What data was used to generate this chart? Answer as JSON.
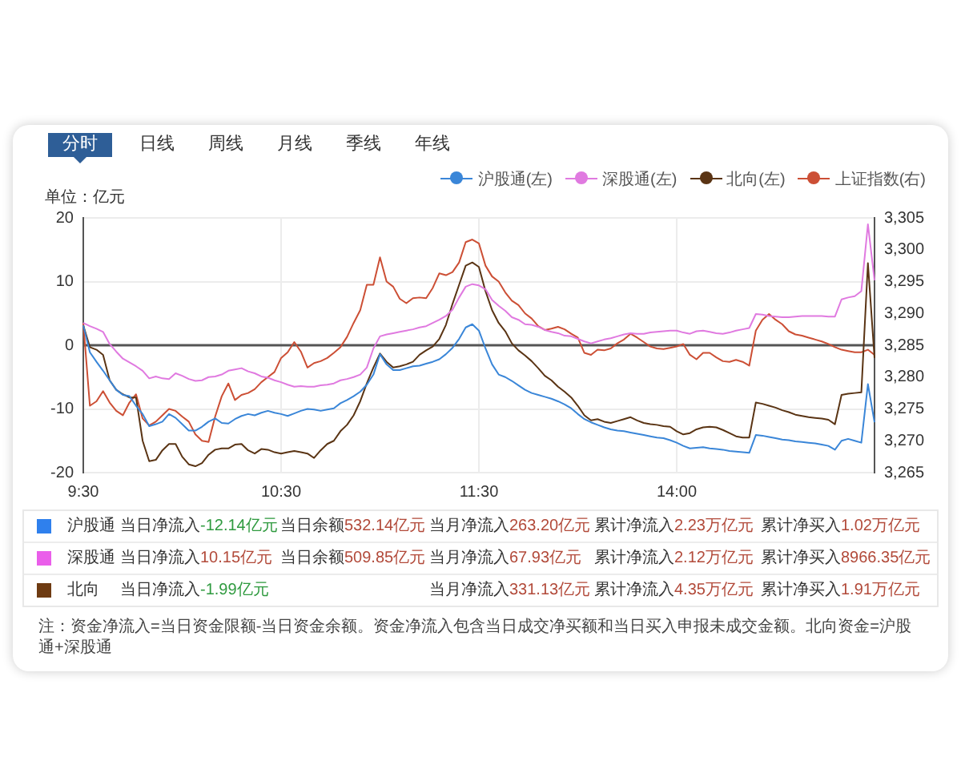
{
  "chart_data": [
    {
      "type": "line",
      "annotations": [
        "分时",
        "日线",
        "周线",
        "月线",
        "季线",
        "年线"
      ],
      "ylabel": "单位：亿元",
      "categories": [
        "9:30",
        null,
        null,
        null,
        null,
        null,
        null,
        null,
        null,
        null,
        null,
        null,
        null,
        null,
        null,
        null,
        null,
        null,
        null,
        null,
        null,
        null,
        null,
        null,
        null,
        null,
        null,
        null,
        null,
        null,
        "10:30",
        null,
        null,
        null,
        null,
        null,
        null,
        null,
        null,
        null,
        null,
        null,
        null,
        null,
        null,
        null,
        null,
        null,
        null,
        null,
        null,
        null,
        null,
        null,
        null,
        null,
        null,
        null,
        null,
        null,
        "11:30",
        null,
        null,
        null,
        null,
        null,
        null,
        null,
        null,
        null,
        null,
        null,
        null,
        null,
        null,
        null,
        null,
        null,
        null,
        null,
        null,
        null,
        null,
        null,
        null,
        null,
        null,
        null,
        null,
        null,
        "14:00",
        null,
        null,
        null,
        null,
        null,
        null,
        null,
        null,
        null,
        null,
        null,
        null,
        null,
        null,
        null,
        null,
        null,
        null,
        null,
        null,
        null,
        null,
        null,
        null,
        null,
        null,
        null,
        null,
        null,
        null
      ],
      "series": [
        {
          "name": "沪股通(左)",
          "color": "#3a86d8",
          "values": [
            3.1,
            -1.1,
            -2.6,
            -4.0,
            -5.5,
            -7.0,
            -7.8,
            -8.0,
            -9.5,
            -10.8,
            -12.7,
            -12.4,
            -12.0,
            -10.8,
            -11.4,
            -12.4,
            -13.4,
            -13.4,
            -12.8,
            -12.0,
            -11.5,
            -12.2,
            -12.3,
            -11.6,
            -11.1,
            -10.8,
            -11.0,
            -10.6,
            -10.3,
            -10.6,
            -10.8,
            -11.1,
            -10.7,
            -10.3,
            -10.0,
            -10.1,
            -10.3,
            -10.1,
            -9.9,
            -9.1,
            -8.6,
            -8.0,
            -7.3,
            -6.2,
            -4.6,
            -1.4,
            -3.0,
            -3.9,
            -3.9,
            -3.6,
            -3.3,
            -3.2,
            -2.9,
            -2.6,
            -2.2,
            -1.4,
            -0.4,
            1.0,
            2.8,
            3.3,
            2.3,
            -0.5,
            -3.0,
            -4.6,
            -5.0,
            -5.6,
            -6.3,
            -7.0,
            -7.5,
            -7.8,
            -8.1,
            -8.4,
            -8.8,
            -9.3,
            -9.9,
            -10.8,
            -11.6,
            -12.1,
            -12.5,
            -12.9,
            -13.2,
            -13.4,
            -13.5,
            -13.7,
            -13.9,
            -14.1,
            -14.3,
            -14.5,
            -14.6,
            -14.9,
            -15.3,
            -15.8,
            -16.2,
            -16.1,
            -16.0,
            -16.2,
            -16.3,
            -16.4,
            -16.6,
            -16.7,
            -16.8,
            -16.9,
            -14.1,
            -14.2,
            -14.4,
            -14.6,
            -14.8,
            -14.9,
            -15.1,
            -15.2,
            -15.3,
            -15.4,
            -15.6,
            -15.8,
            -16.4,
            -15.0,
            -14.7,
            -15.0,
            -15.3,
            -6.1,
            -12.1
          ]
        },
        {
          "name": "深股通(左)",
          "color": "#e07ae0",
          "values": [
            3.5,
            3.0,
            2.6,
            2.1,
            0.2,
            -1.0,
            -2.1,
            -2.7,
            -3.3,
            -4.0,
            -5.2,
            -4.9,
            -5.2,
            -5.3,
            -4.4,
            -4.8,
            -5.3,
            -5.6,
            -5.5,
            -5.0,
            -4.9,
            -4.6,
            -4.0,
            -3.8,
            -3.6,
            -4.1,
            -4.4,
            -4.9,
            -5.1,
            -5.5,
            -5.8,
            -6.2,
            -6.5,
            -6.4,
            -6.5,
            -6.5,
            -6.3,
            -6.2,
            -6.0,
            -5.5,
            -5.3,
            -5.0,
            -4.6,
            -3.5,
            -0.5,
            1.4,
            1.7,
            1.9,
            2.1,
            2.3,
            2.5,
            2.8,
            3.0,
            3.5,
            4.0,
            4.6,
            5.6,
            7.5,
            9.2,
            9.6,
            9.4,
            8.8,
            7.1,
            6.2,
            5.4,
            4.4,
            4.0,
            3.3,
            3.2,
            2.9,
            2.4,
            2.1,
            1.9,
            1.5,
            1.4,
            1.0,
            0.6,
            0.3,
            0.6,
            0.9,
            1.1,
            1.4,
            1.7,
            1.9,
            1.8,
            1.8,
            2.0,
            2.1,
            2.2,
            2.3,
            2.3,
            2.0,
            1.8,
            2.2,
            2.3,
            2.1,
            1.9,
            1.8,
            2.0,
            2.3,
            2.5,
            2.7,
            4.9,
            4.8,
            4.6,
            4.5,
            4.4,
            4.4,
            4.5,
            4.6,
            4.6,
            4.6,
            4.6,
            4.5,
            4.5,
            7.2,
            7.5,
            7.7,
            8.5,
            19.0,
            10.2
          ]
        },
        {
          "name": "北向(左)",
          "color": "#5a3414",
          "values": [
            3.1,
            -0.3,
            -0.7,
            -1.5,
            -5.5,
            -7.0,
            -7.7,
            -8.2,
            -8.2,
            -15.0,
            -18.2,
            -18.0,
            -16.5,
            -15.5,
            -15.5,
            -17.5,
            -18.7,
            -19.0,
            -18.5,
            -17.2,
            -16.4,
            -16.2,
            -16.2,
            -15.6,
            -15.5,
            -16.5,
            -17.0,
            -16.3,
            -16.4,
            -16.8,
            -17.0,
            -16.8,
            -16.6,
            -16.8,
            -17.0,
            -17.7,
            -16.5,
            -15.5,
            -15.0,
            -13.5,
            -12.5,
            -11.0,
            -8.8,
            -6.0,
            -3.5,
            -1.3,
            -2.6,
            -3.5,
            -3.3,
            -3.0,
            -2.6,
            -1.5,
            -0.8,
            -0.2,
            1.0,
            3.2,
            6.5,
            9.5,
            12.5,
            13.0,
            12.3,
            8.5,
            5.5,
            3.5,
            2.2,
            0.3,
            -0.8,
            -1.6,
            -2.5,
            -3.6,
            -4.8,
            -5.5,
            -6.5,
            -7.3,
            -8.2,
            -9.5,
            -11.0,
            -11.8,
            -11.6,
            -12.0,
            -12.2,
            -11.9,
            -11.6,
            -11.3,
            -11.8,
            -12.2,
            -12.4,
            -12.5,
            -12.7,
            -12.8,
            -13.5,
            -14.0,
            -13.8,
            -13.2,
            -12.9,
            -12.8,
            -12.9,
            -13.3,
            -13.8,
            -14.3,
            -14.5,
            -14.5,
            -9.0,
            -9.2,
            -9.5,
            -9.8,
            -10.2,
            -10.5,
            -10.9,
            -11.1,
            -11.3,
            -11.4,
            -11.5,
            -11.7,
            -12.4,
            -7.8,
            -7.6,
            -7.5,
            -7.4,
            12.9,
            -2.0
          ]
        },
        {
          "name": "上证指数(右)",
          "color": "#cc4f35",
          "axis": "y2",
          "values": [
            3288.5,
            3275.5,
            3276.2,
            3277.8,
            3276.0,
            3274.7,
            3274.0,
            3276.0,
            3277.3,
            3273.5,
            3272.4,
            3273.0,
            3274.0,
            3275.0,
            3274.7,
            3273.8,
            3273.0,
            3271.0,
            3270.0,
            3269.8,
            3273.8,
            3277.0,
            3279.0,
            3276.4,
            3277.2,
            3277.5,
            3278.1,
            3279.2,
            3280.0,
            3280.8,
            3283.0,
            3283.9,
            3285.5,
            3284.0,
            3281.5,
            3282.2,
            3282.5,
            3283.0,
            3283.8,
            3284.7,
            3286.3,
            3288.5,
            3290.5,
            3294.5,
            3294.5,
            3298.8,
            3295.0,
            3294.2,
            3292.3,
            3291.6,
            3292.4,
            3292.5,
            3292.4,
            3294.0,
            3296.3,
            3296.0,
            3296.5,
            3298.0,
            3301.2,
            3301.6,
            3301.0,
            3297.5,
            3295.8,
            3295.0,
            3293.3,
            3292.0,
            3291.3,
            3290.0,
            3289.2,
            3288.0,
            3287.4,
            3287.6,
            3287.9,
            3287.5,
            3286.8,
            3286.2,
            3283.8,
            3283.5,
            3284.3,
            3284.2,
            3284.5,
            3285.3,
            3285.9,
            3286.8,
            3286.2,
            3285.5,
            3284.8,
            3284.5,
            3284.4,
            3284.6,
            3284.8,
            3285.2,
            3283.5,
            3282.8,
            3283.8,
            3283.8,
            3283.1,
            3282.5,
            3282.4,
            3282.7,
            3282.4,
            3281.8,
            3287.3,
            3289.0,
            3289.9,
            3289.0,
            3288.3,
            3287.2,
            3286.7,
            3286.5,
            3286.2,
            3285.9,
            3285.6,
            3285.2,
            3284.7,
            3284.3,
            3284.1,
            3283.9,
            3283.9,
            3284.3,
            3283.5
          ]
        }
      ],
      "ylim": [
        -20,
        20
      ],
      "yticks": [
        -20,
        -10,
        0,
        10,
        20
      ],
      "y2lim": [
        3265,
        3305
      ],
      "y2ticks": [
        {
          "value": 3265,
          "label": "3,265"
        },
        {
          "value": 3270,
          "label": "3,270"
        },
        {
          "value": 3275,
          "label": "3,275"
        },
        {
          "value": 3280,
          "label": "3,280"
        },
        {
          "value": 3285,
          "label": "3,285"
        },
        {
          "value": 3290,
          "label": "3,290"
        },
        {
          "value": 3295,
          "label": "3,295"
        },
        {
          "value": 3300,
          "label": "3,300"
        },
        {
          "value": 3305,
          "label": "3,305"
        }
      ],
      "ref_lines": [
        {
          "axis": "y",
          "value": 0,
          "color": "#555555"
        }
      ],
      "grid": true,
      "legend": "top right"
    },
    {
      "type": "other",
      "categories": [
        "沪股通",
        "深股通",
        "北向"
      ],
      "colors": [
        "#2f80ed",
        "#ea5eea",
        "#6e3b12"
      ],
      "cell_labels": [
        [
          "当日净流入-12.14亿元",
          "当日余额532.14亿元",
          "当月净流入263.20亿元",
          "累计净流入2.23万亿元",
          "累计净买入1.02万亿元"
        ],
        [
          "当日净流入10.15亿元",
          "当日余额509.85亿元",
          "当月净流入67.93亿元",
          "累计净流入2.12万亿元",
          "累计净买入8966.35亿元"
        ],
        [
          "当日净流入-1.99亿元",
          null,
          "当月净流入331.13亿元",
          "累计净流入4.35万亿元",
          "累计净买入1.91万亿元"
        ]
      ],
      "annotations": [
        "注：资金净流入=当日资金限额-当日资金余额。资金净流入包含当日成交净买额和当日买入申报未成交金额。北向资金=沪股通+深股通"
      ]
    }
  ]
}
